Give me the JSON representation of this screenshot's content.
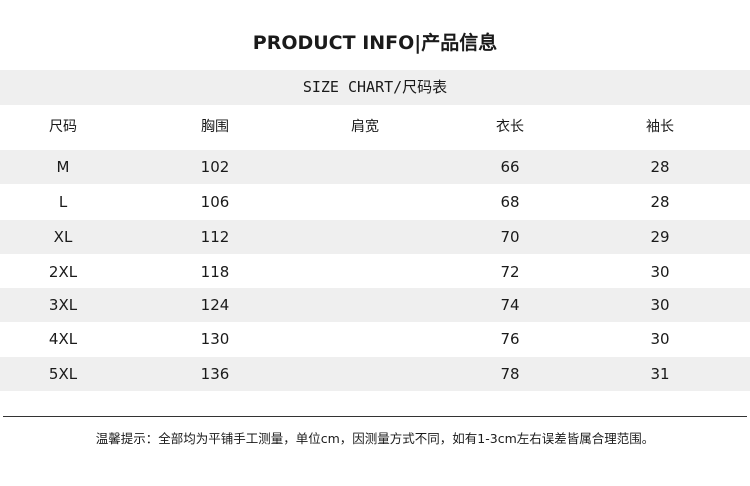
{
  "title": "PRODUCT INFO|产品信息",
  "size_chart_title": "SIZE CHART/尺码表",
  "headers": [
    "尺码",
    "胸围",
    "肩宽",
    "衣长",
    "袖长"
  ],
  "rows": [
    [
      "M",
      "102",
      "",
      "66",
      "28"
    ],
    [
      "L",
      "106",
      "",
      "68",
      "28"
    ],
    [
      "XL",
      "112",
      "",
      "70",
      "29"
    ],
    [
      "2XL",
      "118",
      "",
      "72",
      "30"
    ],
    [
      "3XL",
      "124",
      "",
      "74",
      "30"
    ],
    [
      "4XL",
      "130",
      "",
      "76",
      "30"
    ],
    [
      "5XL",
      "136",
      "",
      "78",
      "31"
    ]
  ],
  "note": "温馨提示：全部均为平铺手工测量，单位cm，因测量方式不同，如有1-3cm左右误差皆属合理范围。",
  "colors": {
    "band": "#efefef",
    "text": "#1a1a1a"
  }
}
